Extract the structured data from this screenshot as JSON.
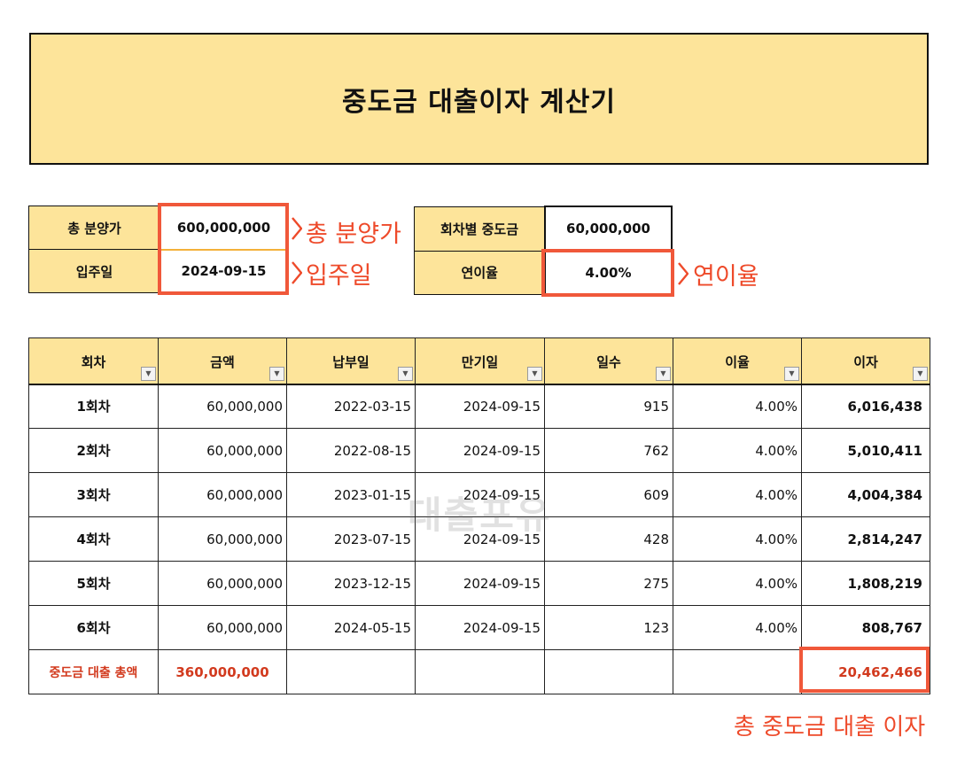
{
  "title": "중도금 대출이자 계산기",
  "inputs": {
    "total_price_label": "총 분양가",
    "total_price_value": "600,000,000",
    "move_in_label": "입주일",
    "move_in_value": "2024-09-15",
    "installment_label": "회차별 중도금",
    "installment_value": "60,000,000",
    "annual_rate_label": "연이율",
    "annual_rate_value": "4.00%"
  },
  "annotations": {
    "total_price": "총 분양가",
    "move_in": "입주일",
    "annual_rate": "연이율",
    "total_interest": "총 중도금 대출 이자"
  },
  "table": {
    "columns": [
      "회차",
      "금액",
      "납부일",
      "만기일",
      "일수",
      "이율",
      "이자"
    ],
    "rows": [
      [
        "1회차",
        "60,000,000",
        "2022-03-15",
        "2024-09-15",
        "915",
        "4.00%",
        "6,016,438"
      ],
      [
        "2회차",
        "60,000,000",
        "2022-08-15",
        "2024-09-15",
        "762",
        "4.00%",
        "5,010,411"
      ],
      [
        "3회차",
        "60,000,000",
        "2023-01-15",
        "2024-09-15",
        "609",
        "4.00%",
        "4,004,384"
      ],
      [
        "4회차",
        "60,000,000",
        "2023-07-15",
        "2024-09-15",
        "428",
        "4.00%",
        "2,814,247"
      ],
      [
        "5회차",
        "60,000,000",
        "2023-12-15",
        "2024-09-15",
        "275",
        "4.00%",
        "1,808,219"
      ],
      [
        "6회차",
        "60,000,000",
        "2024-05-15",
        "2024-09-15",
        "123",
        "4.00%",
        "808,767"
      ]
    ],
    "total_label": "중도금 대출 총액",
    "total_amount": "360,000,000",
    "total_interest": "20,462,466"
  },
  "watermark": "대출포유",
  "colors": {
    "header_fill": "#fde49a",
    "highlight_border": "#f0583a",
    "annotation_text": "#ee4a2a",
    "total_text": "#d23a1e"
  }
}
